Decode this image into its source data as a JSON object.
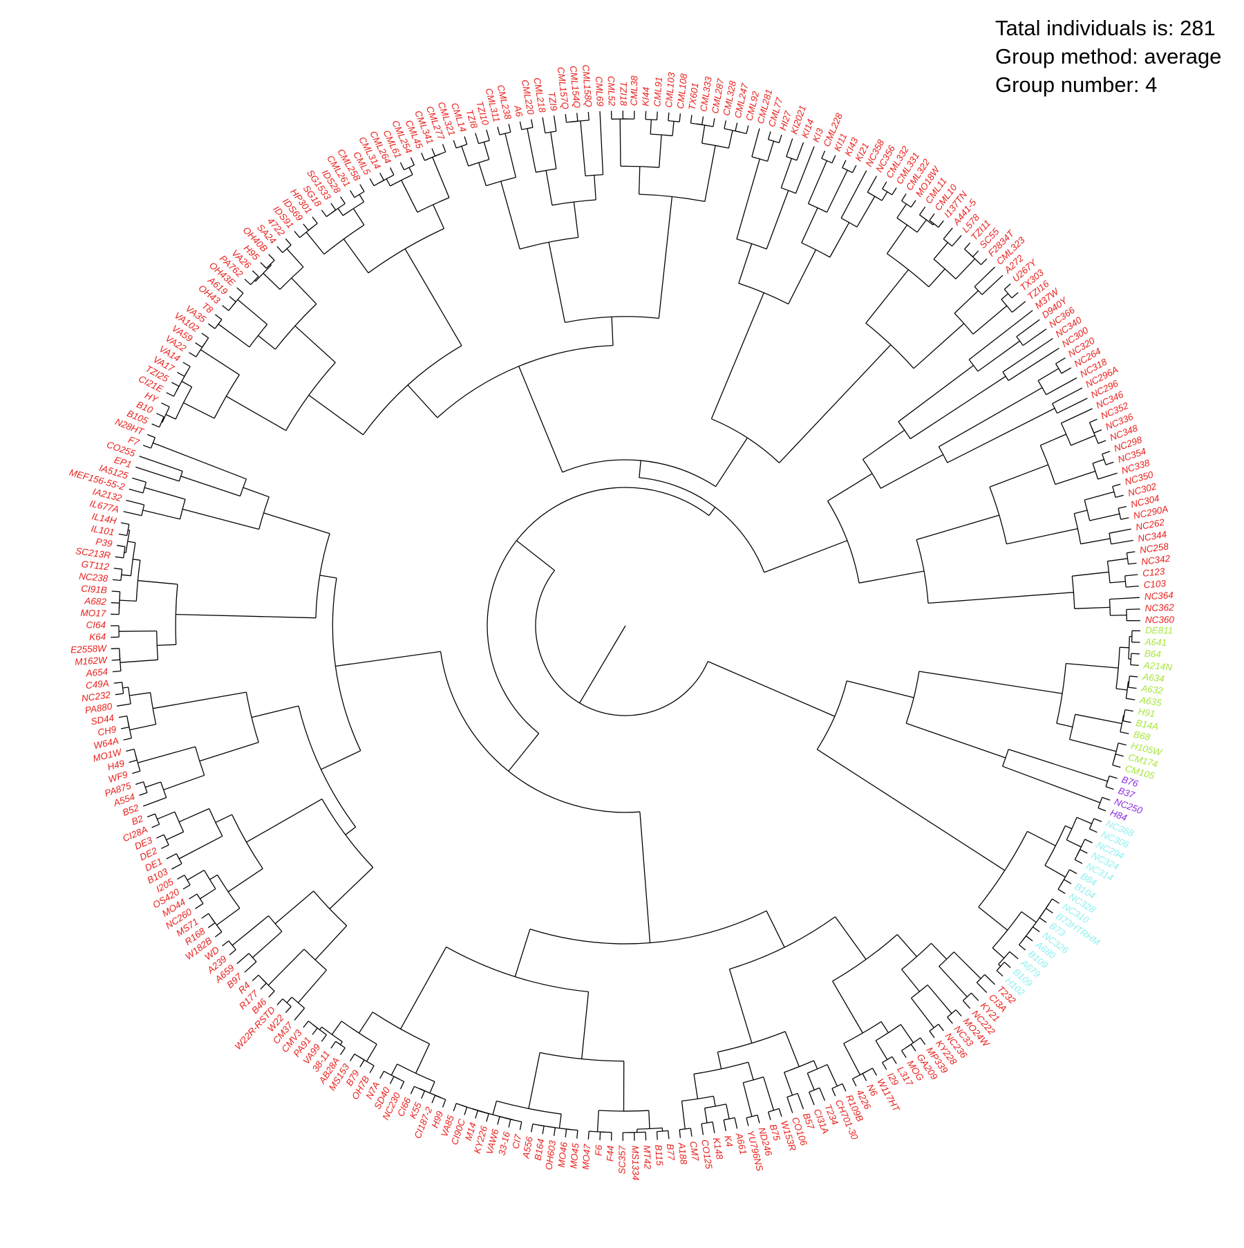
{
  "info": {
    "line1": "Tatal individuals is: 281",
    "line2": "Group method: average",
    "line3": "Group number: 4"
  },
  "group_colors": {
    "1": "#e8201c",
    "2": "#a6e63c",
    "3": "#8a2be2",
    "4": "#8ff0f0"
  },
  "tips": [
    [
      "DE811",
      2
    ],
    [
      "A641",
      2
    ],
    [
      "B64",
      2
    ],
    [
      "A214N",
      2
    ],
    [
      "A634",
      2
    ],
    [
      "A632",
      2
    ],
    [
      "A635",
      2
    ],
    [
      "H91",
      2
    ],
    [
      "B14A",
      2
    ],
    [
      "B68",
      2
    ],
    [
      "H105W",
      2
    ],
    [
      "CM174",
      2
    ],
    [
      "CM105",
      2
    ],
    [
      "B76",
      3
    ],
    [
      "B37",
      3
    ],
    [
      "NC250",
      3
    ],
    [
      "H84",
      3
    ],
    [
      "NC368",
      4
    ],
    [
      "NC306",
      4
    ],
    [
      "NC294",
      4
    ],
    [
      "NC324",
      4
    ],
    [
      "NC314",
      4
    ],
    [
      "B84",
      4
    ],
    [
      "B104",
      4
    ],
    [
      "NC328",
      4
    ],
    [
      "NC310",
      4
    ],
    [
      "B73HTRHM",
      4
    ],
    [
      "B73",
      4
    ],
    [
      "NC326",
      4
    ],
    [
      "A680",
      4
    ],
    [
      "B109",
      4
    ],
    [
      "A679",
      4
    ],
    [
      "B109",
      4
    ],
    [
      "H102",
      4
    ],
    [
      "T232",
      1
    ],
    [
      "CI3A",
      1
    ],
    [
      "KY21",
      1
    ],
    [
      "NC222",
      1
    ],
    [
      "MO24W",
      1
    ],
    [
      "NC33",
      1
    ],
    [
      "NC236",
      1
    ],
    [
      "KY228",
      1
    ],
    [
      "MP339",
      1
    ],
    [
      "GA209",
      1
    ],
    [
      "MOG",
      1
    ],
    [
      "L317",
      1
    ],
    [
      "I29",
      1
    ],
    [
      "W117HT",
      1
    ],
    [
      "N6",
      1
    ],
    [
      "4226",
      1
    ],
    [
      "R109B",
      1
    ],
    [
      "CH701-30",
      1
    ],
    [
      "T234",
      1
    ],
    [
      "CI31A",
      1
    ],
    [
      "B57",
      1
    ],
    [
      "CO106",
      1
    ],
    [
      "W153R",
      1
    ],
    [
      "B75",
      1
    ],
    [
      "ND246",
      1
    ],
    [
      "YU796NS",
      1
    ],
    [
      "A661",
      1
    ],
    [
      "K4",
      1
    ],
    [
      "K148",
      1
    ],
    [
      "CO125",
      1
    ],
    [
      "CM7",
      1
    ],
    [
      "A188",
      1
    ],
    [
      "B77",
      1
    ],
    [
      "B115",
      1
    ],
    [
      "MT42",
      1
    ],
    [
      "MS1334",
      1
    ],
    [
      "SC357",
      1
    ],
    [
      "F44",
      1
    ],
    [
      "F6",
      1
    ],
    [
      "MO47",
      1
    ],
    [
      "MO45",
      1
    ],
    [
      "MO46",
      1
    ],
    [
      "OH603",
      1
    ],
    [
      "B164",
      1
    ],
    [
      "A556",
      1
    ],
    [
      "CI7",
      1
    ],
    [
      "33-16",
      1
    ],
    [
      "VAW6",
      1
    ],
    [
      "KY226",
      1
    ],
    [
      "M14",
      1
    ],
    [
      "CI90C",
      1
    ],
    [
      "VA85",
      1
    ],
    [
      "H99",
      1
    ],
    [
      "CI187-2",
      1
    ],
    [
      "K55",
      1
    ],
    [
      "CI66",
      1
    ],
    [
      "NC230",
      1
    ],
    [
      "SD40",
      1
    ],
    [
      "N7A",
      1
    ],
    [
      "OH7B",
      1
    ],
    [
      "B79",
      1
    ],
    [
      "MS153",
      1
    ],
    [
      "AB28A",
      1
    ],
    [
      "38-11",
      1
    ],
    [
      "VA99",
      1
    ],
    [
      "PA91",
      1
    ],
    [
      "CMV3",
      1
    ],
    [
      "CM37",
      1
    ],
    [
      "W22",
      1
    ],
    [
      "W22R-RSTD",
      1
    ],
    [
      "B46",
      1
    ],
    [
      "R177",
      1
    ],
    [
      "R4",
      1
    ],
    [
      "B97",
      1
    ],
    [
      "A659",
      1
    ],
    [
      "A239",
      1
    ],
    [
      "WD",
      1
    ],
    [
      "W182B",
      1
    ],
    [
      "R168",
      1
    ],
    [
      "MS71",
      1
    ],
    [
      "NC260",
      1
    ],
    [
      "MO44",
      1
    ],
    [
      "OS420",
      1
    ],
    [
      "I205",
      1
    ],
    [
      "B103",
      1
    ],
    [
      "DE1",
      1
    ],
    [
      "DE2",
      1
    ],
    [
      "DE3",
      1
    ],
    [
      "CI28A",
      1
    ],
    [
      "B2",
      1
    ],
    [
      "B52",
      1
    ],
    [
      "A554",
      1
    ],
    [
      "PA875",
      1
    ],
    [
      "WF9",
      1
    ],
    [
      "H49",
      1
    ],
    [
      "MO1W",
      1
    ],
    [
      "W64A",
      1
    ],
    [
      "CH9",
      1
    ],
    [
      "SD44",
      1
    ],
    [
      "PA880",
      1
    ],
    [
      "NC232",
      1
    ],
    [
      "C49A",
      1
    ],
    [
      "A654",
      1
    ],
    [
      "M162W",
      1
    ],
    [
      "E2558W",
      1
    ],
    [
      "K64",
      1
    ],
    [
      "CI64",
      1
    ],
    [
      "MO17",
      1
    ],
    [
      "A682",
      1
    ],
    [
      "CI91B",
      1
    ],
    [
      "NC238",
      1
    ],
    [
      "GT112",
      1
    ],
    [
      "SC213R",
      1
    ],
    [
      "P39",
      1
    ],
    [
      "IL101",
      1
    ],
    [
      "IL14H",
      1
    ],
    [
      "IL677A",
      1
    ],
    [
      "IA2132",
      1
    ],
    [
      "MEF156-55-2",
      1
    ],
    [
      "IA5125",
      1
    ],
    [
      "EP1",
      1
    ],
    [
      "CO255",
      1
    ],
    [
      "F7",
      1
    ],
    [
      "N28HT",
      1
    ],
    [
      "B105",
      1
    ],
    [
      "B10",
      1
    ],
    [
      "HY",
      1
    ],
    [
      "CI21E",
      1
    ],
    [
      "TZI25",
      1
    ],
    [
      "VA17",
      1
    ],
    [
      "VA14",
      1
    ],
    [
      "VA22",
      1
    ],
    [
      "VA59",
      1
    ],
    [
      "VA102",
      1
    ],
    [
      "VA35",
      1
    ],
    [
      "T8",
      1
    ],
    [
      "OH43",
      1
    ],
    [
      "A619",
      1
    ],
    [
      "OH43E",
      1
    ],
    [
      "PA762",
      1
    ],
    [
      "VA26",
      1
    ],
    [
      "H95",
      1
    ],
    [
      "OH40B",
      1
    ],
    [
      "SA24",
      1
    ],
    [
      "4722",
      1
    ],
    [
      "IDS91",
      1
    ],
    [
      "IDS69",
      1
    ],
    [
      "HP301",
      1
    ],
    [
      "SG18",
      1
    ],
    [
      "SG1533",
      1
    ],
    [
      "IDS28",
      1
    ],
    [
      "CML261",
      1
    ],
    [
      "CML258",
      1
    ],
    [
      "CML5",
      1
    ],
    [
      "CML314",
      1
    ],
    [
      "CML264",
      1
    ],
    [
      "CML61",
      1
    ],
    [
      "CML254",
      1
    ],
    [
      "CML45",
      1
    ],
    [
      "CML341",
      1
    ],
    [
      "CML277",
      1
    ],
    [
      "CML321",
      1
    ],
    [
      "CML14",
      1
    ],
    [
      "TZI8",
      1
    ],
    [
      "TZI10",
      1
    ],
    [
      "CML311",
      1
    ],
    [
      "CML238",
      1
    ],
    [
      "A6",
      1
    ],
    [
      "CML220",
      1
    ],
    [
      "CML218",
      1
    ],
    [
      "TZI9",
      1
    ],
    [
      "CML157Q",
      1
    ],
    [
      "CML154Q",
      1
    ],
    [
      "CML158Q",
      1
    ],
    [
      "CML69",
      1
    ],
    [
      "CML52",
      1
    ],
    [
      "TZI18",
      1
    ],
    [
      "CML38",
      1
    ],
    [
      "KI44",
      1
    ],
    [
      "CML91",
      1
    ],
    [
      "CML103",
      1
    ],
    [
      "CML108",
      1
    ],
    [
      "TX601",
      1
    ],
    [
      "CML333",
      1
    ],
    [
      "CML287",
      1
    ],
    [
      "CML328",
      1
    ],
    [
      "CML247",
      1
    ],
    [
      "CML92",
      1
    ],
    [
      "CML281",
      1
    ],
    [
      "CML77",
      1
    ],
    [
      "HI27",
      1
    ],
    [
      "KI2021",
      1
    ],
    [
      "KI14",
      1
    ],
    [
      "KI3",
      1
    ],
    [
      "CML228",
      1
    ],
    [
      "KI11",
      1
    ],
    [
      "KI43",
      1
    ],
    [
      "KI21",
      1
    ],
    [
      "NC358",
      1
    ],
    [
      "NC356",
      1
    ],
    [
      "CML332",
      1
    ],
    [
      "CML331",
      1
    ],
    [
      "CML322",
      1
    ],
    [
      "MO18W",
      1
    ],
    [
      "CML11",
      1
    ],
    [
      "CML10",
      1
    ],
    [
      "I137TN",
      1
    ],
    [
      "A441-5",
      1
    ],
    [
      "L578",
      1
    ],
    [
      "TZI11",
      1
    ],
    [
      "SC55",
      1
    ],
    [
      "F2834T",
      1
    ],
    [
      "CML323",
      1
    ],
    [
      "A272",
      1
    ],
    [
      "U267Y",
      1
    ],
    [
      "TX303",
      1
    ],
    [
      "TZI16",
      1
    ],
    [
      "M37W",
      1
    ],
    [
      "D940Y",
      1
    ],
    [
      "NC366",
      1
    ],
    [
      "NC340",
      1
    ],
    [
      "NC300",
      1
    ],
    [
      "NC320",
      1
    ],
    [
      "NC264",
      1
    ],
    [
      "NC318",
      1
    ],
    [
      "NC296A",
      1
    ],
    [
      "NC296",
      1
    ],
    [
      "NC346",
      1
    ],
    [
      "NC352",
      1
    ],
    [
      "NC336",
      1
    ],
    [
      "NC348",
      1
    ],
    [
      "NC298",
      1
    ],
    [
      "NC354",
      1
    ],
    [
      "NC338",
      1
    ],
    [
      "NC350",
      1
    ],
    [
      "NC302",
      1
    ],
    [
      "NC304",
      1
    ],
    [
      "NC290A",
      1
    ],
    [
      "NC262",
      1
    ],
    [
      "NC344",
      1
    ],
    [
      "NC258",
      1
    ],
    [
      "NC342",
      1
    ],
    [
      "C123",
      1
    ],
    [
      "C103",
      1
    ],
    [
      "NC364",
      1
    ],
    [
      "NC362",
      1
    ],
    [
      "NC360",
      1
    ]
  ]
}
